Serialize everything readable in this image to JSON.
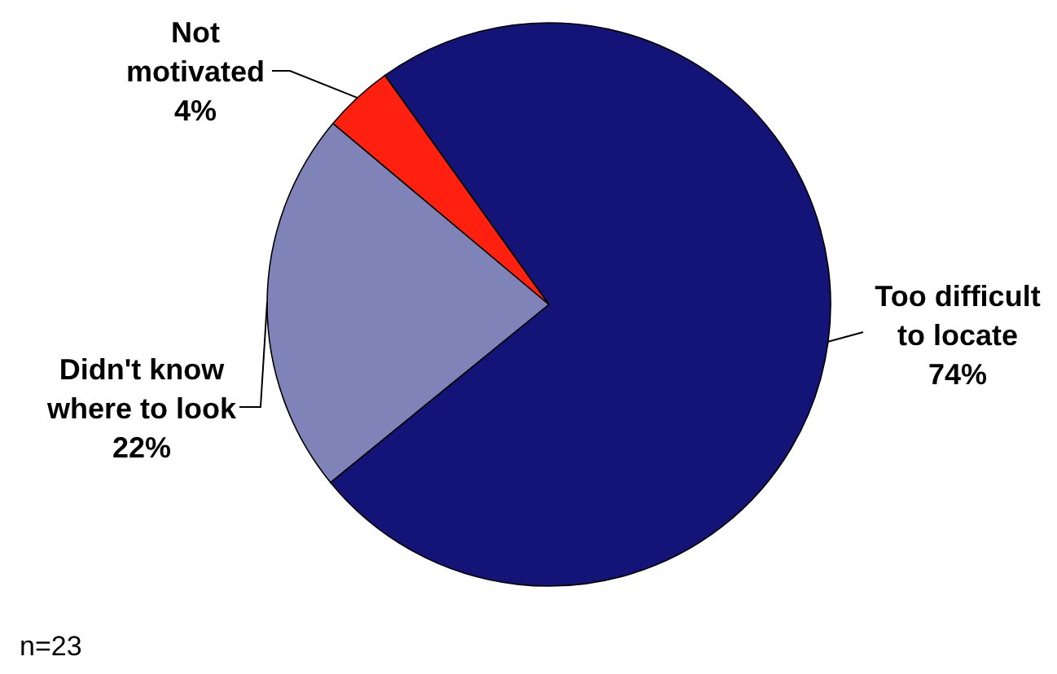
{
  "chart_data": {
    "type": "pie",
    "categories": [
      "Too difficult\nto locate",
      "Didn't know\nwhere to look",
      "Not\nmotivated"
    ],
    "values": [
      74,
      22,
      4
    ],
    "colors": [
      "#141478",
      "#7f83b8",
      "#ff2010"
    ],
    "value_labels": [
      "74%",
      "22%",
      "4%"
    ],
    "annotations": [
      "n=23"
    ]
  }
}
